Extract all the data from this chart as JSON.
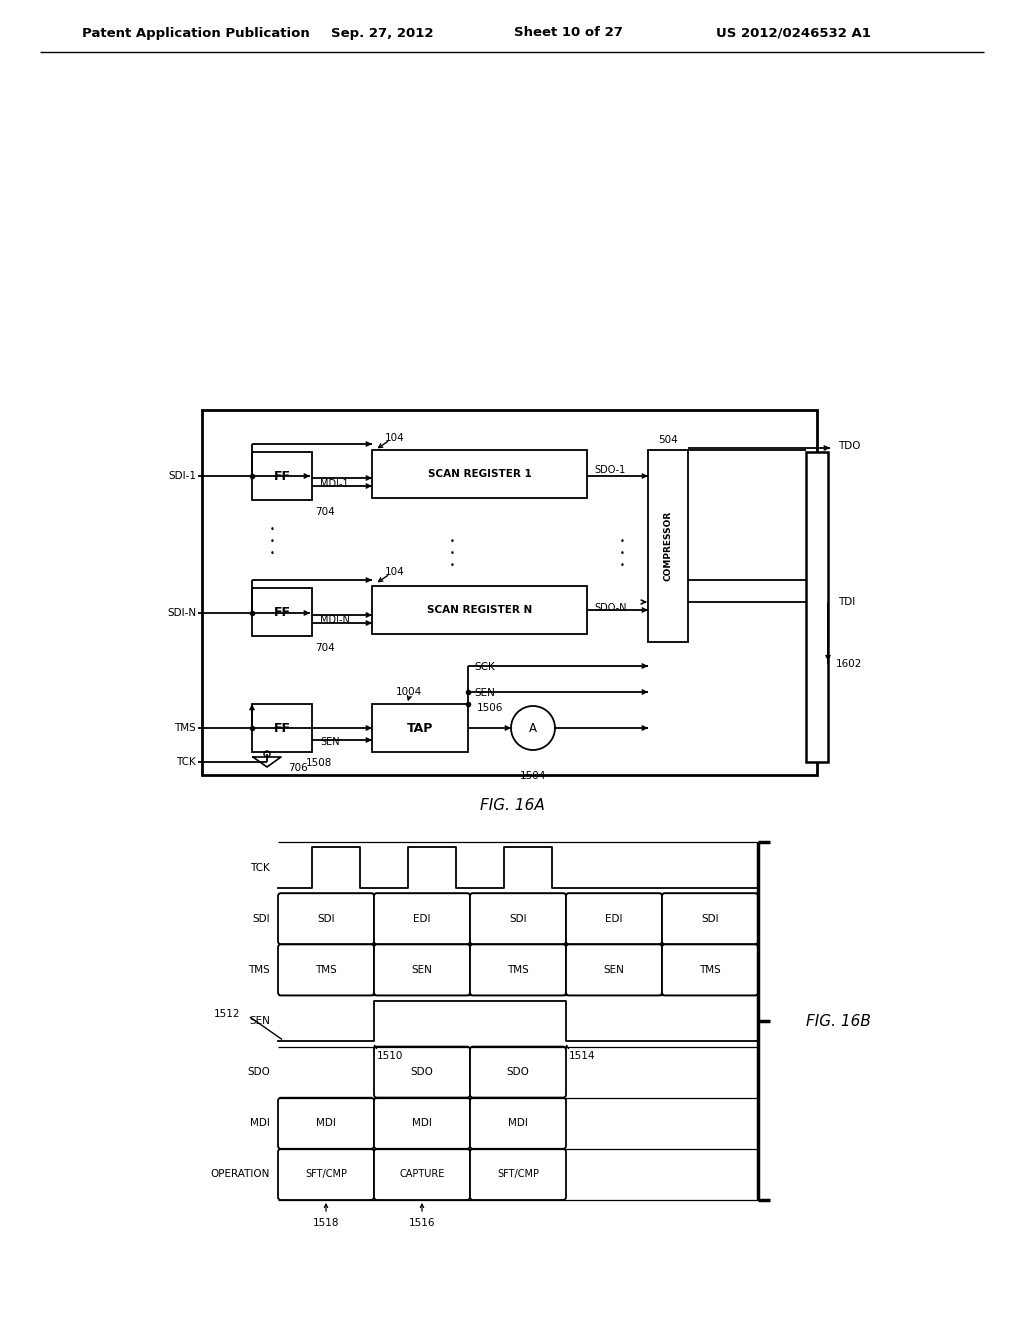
{
  "bg_color": "#ffffff",
  "header_left": "Patent Application Publication",
  "header_date": "Sep. 27, 2012",
  "header_sheet": "Sheet 10 of 27",
  "header_patent": "US 2012/0246532 A1",
  "fig16a_label": "FIG. 16A",
  "fig16b_label": "FIG. 16B"
}
